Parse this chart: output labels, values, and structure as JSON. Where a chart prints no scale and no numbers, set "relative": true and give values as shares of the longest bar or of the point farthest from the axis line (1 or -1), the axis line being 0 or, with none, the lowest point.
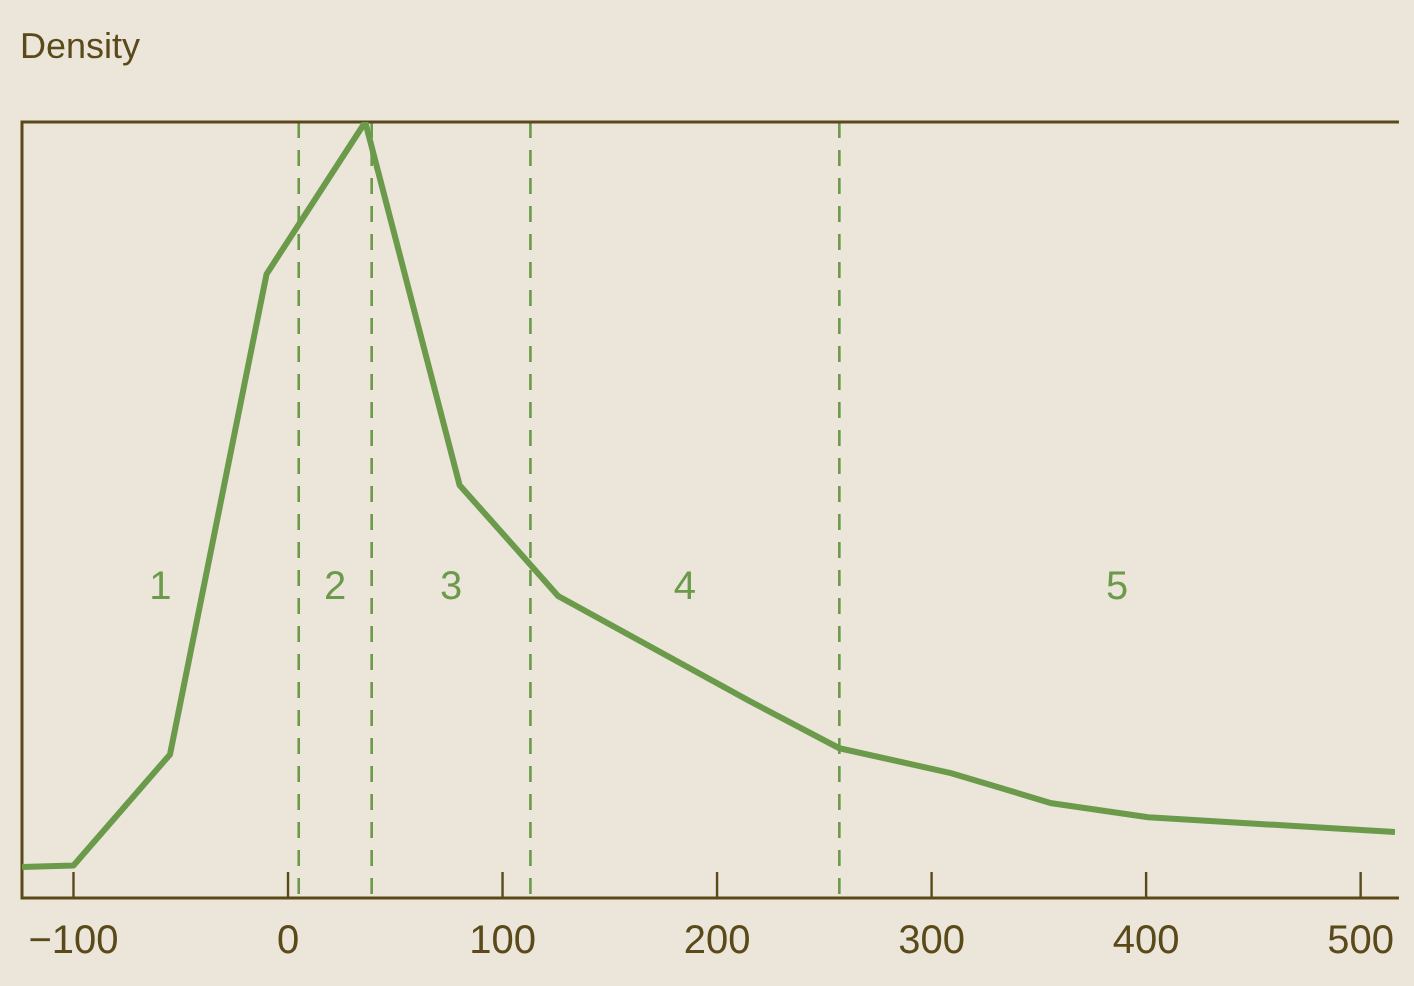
{
  "chart_data": {
    "type": "line",
    "relative": true,
    "ylabel": "Density",
    "x": [
      -124,
      -100,
      -55,
      -10,
      36,
      80,
      126,
      215,
      257,
      309,
      356,
      401,
      516
    ],
    "series": [
      {
        "color": "#6a9a4a",
        "values": [
          0.04,
          0.042,
          0.185,
          0.804,
          1,
          0.532,
          0.389,
          0.254,
          0.193,
          0.161,
          0.122,
          0.104,
          0.085
        ]
      }
    ],
    "xlim": [
      -124,
      516
    ],
    "xticks": [
      {
        "value": -100,
        "label": "−100"
      },
      0,
      100,
      200,
      300,
      400,
      500
    ],
    "grid": false,
    "legend": false,
    "marker": "none",
    "line_style": "solid",
    "ref_lines": [
      {
        "axis": "x",
        "value": 5,
        "color": "#6a9a4a",
        "line_style": "dashed"
      },
      {
        "axis": "x",
        "value": 39,
        "color": "#6a9a4a",
        "line_style": "dashed"
      },
      {
        "axis": "x",
        "value": 113,
        "color": "#6a9a4a",
        "line_style": "dashed"
      },
      {
        "axis": "x",
        "value": 257,
        "color": "#6a9a4a",
        "line_style": "dashed"
      }
    ],
    "annotations": [
      "1",
      "2",
      "3",
      "4",
      "5"
    ]
  }
}
